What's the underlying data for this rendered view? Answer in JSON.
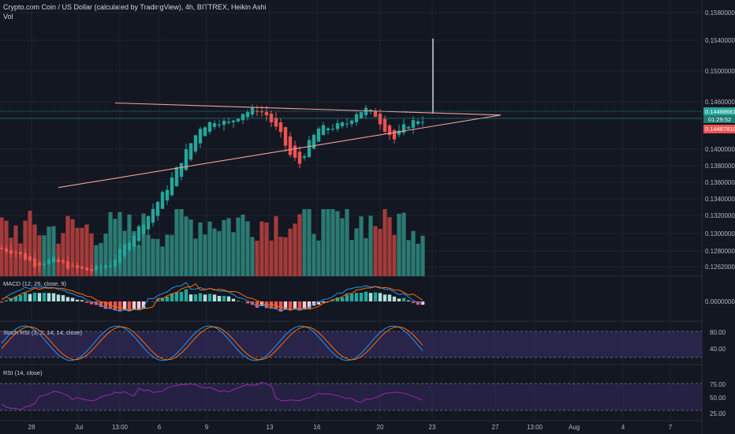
{
  "header": {
    "title": "Crypto.com Coin / US Dollar (calculated by TradingView), 4h, BITTREX, Heikin Ashi",
    "vol_label": "Vol"
  },
  "panes": {
    "macd_label": "MACD (12, 26, close, 9)",
    "stoch_label": "Stoch RSI (3, 3, 14, 14, close)",
    "rsi_label": "RSI (14, close)"
  },
  "colors": {
    "background": "#131722",
    "up": "#26a69a",
    "down": "#ef5350",
    "vol_up": "#2b7a73",
    "vol_down": "#a33b3b",
    "trendline": "#f2a09a",
    "stoch_band": "#3a2f6b",
    "rsi_line": "#9c27b0"
  },
  "chart_data": {
    "type": "candlestick",
    "timeframe": "4h",
    "exchange": "BITTREX",
    "price_axis": {
      "ylim": [
        0.1255,
        0.159
      ],
      "ticks": [
        "0.15800000",
        "0.15400000",
        "0.15000000",
        "0.14600000",
        "0.14000000",
        "0.13800000",
        "0.13600000",
        "0.13400000",
        "0.13200000",
        "0.13000000",
        "0.12800000",
        "0.12620000"
      ]
    },
    "price_badges": {
      "last_price": "0.14488661",
      "countdown": "01:29:52",
      "low_price": "0.14487810"
    },
    "macd_axis_label": "0.00000000",
    "stoch_levels": [
      "80.00",
      "40.00"
    ],
    "rsi_levels": [
      "75.00",
      "50.00",
      "25.00"
    ],
    "x_axis_ticks": [
      "28",
      "Jul",
      "13:00",
      "6",
      "9",
      "13",
      "16",
      "20",
      "23",
      "27",
      "13:00",
      "Aug",
      "4",
      "7"
    ],
    "trendlines": [
      {
        "name": "upper",
        "from": [
          24,
          0.147
        ],
        "to": [
          105.5,
          0.1455
        ]
      },
      {
        "name": "lower",
        "from": [
          12,
          0.1365
        ],
        "to": [
          105.5,
          0.1455
        ]
      }
    ],
    "spike": {
      "index": 91,
      "high": 0.155,
      "low": 0.1457
    }
  }
}
